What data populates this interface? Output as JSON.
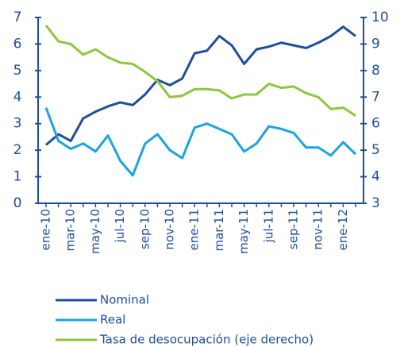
{
  "chart_data": {
    "type": "line",
    "categories": [
      "ene-10",
      null,
      "mar-10",
      null,
      "may-10",
      null,
      "jul-10",
      null,
      "sep-10",
      null,
      "nov-10",
      null,
      "ene-11",
      null,
      "mar-11",
      null,
      "may-11",
      null,
      "jul-11",
      null,
      "sep-11",
      null,
      "nov-11",
      null,
      "ene-12",
      null
    ],
    "series": [
      {
        "name": "Nominal",
        "color": "#1f4e9a",
        "values": [
          2.2,
          2.6,
          2.35,
          3.2,
          3.45,
          3.65,
          3.8,
          3.7,
          4.1,
          4.65,
          4.45,
          4.7,
          5.65,
          5.75,
          6.3,
          5.95,
          5.25,
          5.8,
          5.9,
          6.05,
          5.95,
          5.85,
          6.05,
          6.3,
          6.65,
          6.3
        ]
      },
      {
        "name": "Real",
        "color": "#1ca3e0",
        "values": [
          3.6,
          2.35,
          2.05,
          2.25,
          1.95,
          2.55,
          1.6,
          1.05,
          2.25,
          2.6,
          2.0,
          1.7,
          2.85,
          3.0,
          2.8,
          2.6,
          1.95,
          2.25,
          2.9,
          2.8,
          2.65,
          2.1,
          2.1,
          1.8,
          2.3,
          1.85
        ]
      },
      {
        "name": "Tasa de desocupación (eje derecho)",
        "color": "#8dc63f",
        "axis": "y2",
        "values": [
          9.7,
          9.1,
          9.0,
          8.6,
          8.8,
          8.5,
          8.3,
          8.25,
          7.95,
          7.6,
          7.0,
          7.05,
          7.3,
          7.3,
          7.25,
          6.95,
          7.1,
          7.1,
          7.5,
          7.35,
          7.4,
          7.15,
          7.0,
          6.55,
          6.6,
          6.3
        ]
      }
    ],
    "ylim": [
      0,
      7
    ],
    "yticks": [
      0,
      1,
      2,
      3,
      4,
      5,
      6,
      7
    ],
    "y2lim": [
      3,
      10
    ],
    "y2ticks": [
      3,
      4,
      5,
      6,
      7,
      8,
      9,
      10
    ],
    "axis_color": "#1f4e9a"
  }
}
